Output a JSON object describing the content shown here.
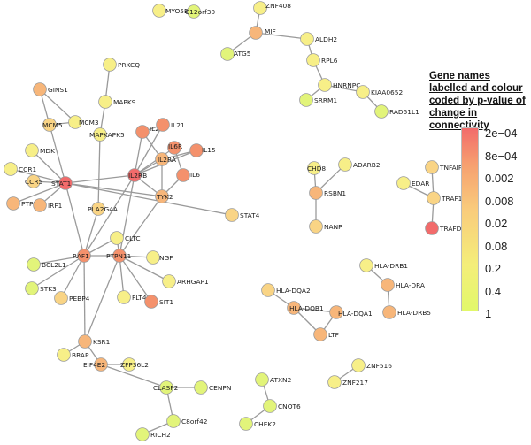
{
  "legend": {
    "title": "Gene names labelled and colour coded by p-value of change in connectivity",
    "ticks": [
      "2e−04",
      "8e−04",
      "0.002",
      "0.008",
      "0.02",
      "0.08",
      "0.2",
      "0.4",
      "1"
    ]
  },
  "colors": {
    "red": "#f26b6b",
    "orange_red": "#f4916c",
    "orange": "#f7b67a",
    "yellow_orange": "#f9d485",
    "yellow": "#f7ef88",
    "yellow_green": "#e2f47a"
  },
  "nodes": [
    {
      "id": "MYO5B",
      "label": "MYO5B",
      "c": "yellow"
    },
    {
      "id": "C12orf30",
      "label": "C12orf30",
      "c": "yellow_green"
    },
    {
      "id": "ZNF408",
      "label": "ZNF408",
      "c": "yellow"
    },
    {
      "id": "MIF",
      "label": "MIF",
      "c": "orange"
    },
    {
      "id": "ALDH2",
      "label": "ALDH2",
      "c": "yellow"
    },
    {
      "id": "ATG5",
      "label": "ATG5",
      "c": "yellow_green"
    },
    {
      "id": "RPL6",
      "label": "RPL6",
      "c": "yellow"
    },
    {
      "id": "PRKCQ",
      "label": "PRKCQ",
      "c": "yellow"
    },
    {
      "id": "HNRNPC",
      "label": "HNRNPC",
      "c": "yellow"
    },
    {
      "id": "KIAA0652",
      "label": "KIAA0652",
      "c": "yellow"
    },
    {
      "id": "SRRM1",
      "label": "SRRM1",
      "c": "yellow_green"
    },
    {
      "id": "RAD51L1",
      "label": "RAD51L1",
      "c": "yellow_green"
    },
    {
      "id": "MAPK9",
      "label": "MAPK9",
      "c": "yellow"
    },
    {
      "id": "GINS1",
      "label": "GINS1",
      "c": "orange"
    },
    {
      "id": "MCM3",
      "label": "MCM3",
      "c": "yellow"
    },
    {
      "id": "MCM5",
      "label": "MCM5",
      "c": "yellow_orange"
    },
    {
      "id": "MAPKAPK5",
      "label": "MAPKAPK5",
      "c": "yellow"
    },
    {
      "id": "IL2",
      "label": "IL2",
      "c": "orange_red"
    },
    {
      "id": "IL21",
      "label": "IL21",
      "c": "orange_red"
    },
    {
      "id": "MDK",
      "label": "MDK",
      "c": "yellow"
    },
    {
      "id": "IL6R",
      "label": "IL6R",
      "c": "orange_red"
    },
    {
      "id": "IL15",
      "label": "IL15",
      "c": "orange_red"
    },
    {
      "id": "IL2RA",
      "label": "IL2RA",
      "c": "orange"
    },
    {
      "id": "CCR1",
      "label": "CCR1",
      "c": "yellow"
    },
    {
      "id": "CCR5",
      "label": "CCR5",
      "c": "yellow_orange"
    },
    {
      "id": "STAT1",
      "label": "STAT1",
      "c": "red"
    },
    {
      "id": "IL2RB",
      "label": "IL2RB",
      "c": "red"
    },
    {
      "id": "IL6",
      "label": "IL6",
      "c": "orange_red"
    },
    {
      "id": "TYK2",
      "label": "TYK2",
      "c": "orange"
    },
    {
      "id": "PTPN2",
      "label": "PTPN2",
      "c": "orange"
    },
    {
      "id": "IRF1",
      "label": "IRF1",
      "c": "orange"
    },
    {
      "id": "CHD8",
      "label": "CHD8",
      "c": "yellow"
    },
    {
      "id": "ADARB2",
      "label": "ADARB2",
      "c": "yellow"
    },
    {
      "id": "TNFAIP3",
      "label": "TNFAIP3",
      "c": "yellow_orange"
    },
    {
      "id": "RSBN1",
      "label": "RSBN1",
      "c": "orange"
    },
    {
      "id": "EDAR",
      "label": "EDAR",
      "c": "yellow"
    },
    {
      "id": "TRAF1",
      "label": "TRAF1",
      "c": "yellow_orange"
    },
    {
      "id": "PLA2G4A",
      "label": "PLA2G4A",
      "c": "yellow_orange"
    },
    {
      "id": "STAT4",
      "label": "STAT4",
      "c": "yellow_orange"
    },
    {
      "id": "CLTC",
      "label": "CLTC",
      "c": "yellow"
    },
    {
      "id": "NANP",
      "label": "NANP",
      "c": "yellow_orange"
    },
    {
      "id": "TRAFD1",
      "label": "TRAFD1",
      "c": "red"
    },
    {
      "id": "RAF1",
      "label": "RAF1",
      "c": "orange_red"
    },
    {
      "id": "PTPN11",
      "label": "PTPN11",
      "c": "orange_red"
    },
    {
      "id": "NGF",
      "label": "NGF",
      "c": "yellow"
    },
    {
      "id": "BCL2L1",
      "label": "BCL2L1",
      "c": "yellow_green"
    },
    {
      "id": "HLA-DRB1",
      "label": "HLA-DRB1",
      "c": "yellow"
    },
    {
      "id": "STK3",
      "label": "STK3",
      "c": "yellow_green"
    },
    {
      "id": "HLA-DRA",
      "label": "HLA-DRA",
      "c": "orange"
    },
    {
      "id": "ARHGAP1",
      "label": "ARHGAP1",
      "c": "yellow"
    },
    {
      "id": "PEBP4",
      "label": "PEBP4",
      "c": "yellow_orange"
    },
    {
      "id": "FLT4",
      "label": "FLT4",
      "c": "yellow"
    },
    {
      "id": "SIT1",
      "label": "SIT1",
      "c": "orange_red"
    },
    {
      "id": "HLA-DQA2",
      "label": "HLA-DQA2",
      "c": "yellow_orange"
    },
    {
      "id": "HLA-DQB1",
      "label": "HLA-DQB1",
      "c": "orange"
    },
    {
      "id": "HLA-DQA1",
      "label": "HLA-DQA1",
      "c": "orange"
    },
    {
      "id": "HLA-DRB5",
      "label": "HLA-DRB5",
      "c": "orange"
    },
    {
      "id": "KSR1",
      "label": "KSR1",
      "c": "orange"
    },
    {
      "id": "LTF",
      "label": "LTF",
      "c": "orange"
    },
    {
      "id": "BRAP",
      "label": "BRAP",
      "c": "yellow"
    },
    {
      "id": "ZNF516",
      "label": "ZNF516",
      "c": "yellow"
    },
    {
      "id": "EIF4E2",
      "label": "EIF4E2",
      "c": "orange"
    },
    {
      "id": "ZFP36L2",
      "label": "ZFP36L2",
      "c": "yellow"
    },
    {
      "id": "ZNF217",
      "label": "ZNF217",
      "c": "yellow"
    },
    {
      "id": "ATXN2",
      "label": "ATXN2",
      "c": "yellow_green"
    },
    {
      "id": "CLASP2",
      "label": "CLASP2",
      "c": "yellow_green"
    },
    {
      "id": "CENPN",
      "label": "CENPN",
      "c": "yellow_green"
    },
    {
      "id": "CNOT6",
      "label": "CNOT6",
      "c": "yellow_green"
    },
    {
      "id": "C8orf42",
      "label": "C8orf42",
      "c": "yellow_green"
    },
    {
      "id": "CHEK2",
      "label": "CHEK2",
      "c": "yellow_green"
    },
    {
      "id": "RICH2",
      "label": "RICH2",
      "c": "yellow_green"
    }
  ],
  "edges": [
    [
      "ZNF408",
      "MIF"
    ],
    [
      "MIF",
      "ALDH2"
    ],
    [
      "MIF",
      "ATG5"
    ],
    [
      "ALDH2",
      "RPL6"
    ],
    [
      "RPL6",
      "HNRNPC"
    ],
    [
      "HNRNPC",
      "SRRM1"
    ],
    [
      "HNRNPC",
      "KIAA0652"
    ],
    [
      "KIAA0652",
      "RAD51L1"
    ],
    [
      "PRKCQ",
      "MAPK9"
    ],
    [
      "MAPK9",
      "MAPKAPK5"
    ],
    [
      "MAPKAPK5",
      "PLA2G4A"
    ],
    [
      "GINS1",
      "MCM5"
    ],
    [
      "GINS1",
      "MCM3"
    ],
    [
      "MCM3",
      "MCM5"
    ],
    [
      "MCM5",
      "STAT1"
    ],
    [
      "MDK",
      "STAT1"
    ],
    [
      "CCR1",
      "STAT1"
    ],
    [
      "CCR5",
      "STAT1"
    ],
    [
      "PTPN2",
      "STAT1"
    ],
    [
      "IRF1",
      "STAT1"
    ],
    [
      "STAT1",
      "IL2RB"
    ],
    [
      "STAT1",
      "RAF1"
    ],
    [
      "STAT1",
      "TYK2"
    ],
    [
      "STAT1",
      "STAT4"
    ],
    [
      "IL2",
      "IL2RB"
    ],
    [
      "IL2",
      "IL2RA"
    ],
    [
      "IL2",
      "IL21"
    ],
    [
      "IL21",
      "IL2RB"
    ],
    [
      "IL2RB",
      "IL2RA"
    ],
    [
      "IL2RB",
      "IL6R"
    ],
    [
      "IL2RB",
      "TYK2"
    ],
    [
      "IL2RB",
      "IL15"
    ],
    [
      "IL2RB",
      "RAF1"
    ],
    [
      "IL2RB",
      "PTPN11"
    ],
    [
      "IL6R",
      "IL6"
    ],
    [
      "IL2RA",
      "IL15"
    ],
    [
      "IL6",
      "TYK2"
    ],
    [
      "TYK2",
      "PTPN11"
    ],
    [
      "TYK2",
      "IL2RA"
    ],
    [
      "PLA2G4A",
      "RAF1"
    ],
    [
      "RAF1",
      "CLTC"
    ],
    [
      "RAF1",
      "PTPN11"
    ],
    [
      "RAF1",
      "BCL2L1"
    ],
    [
      "RAF1",
      "STK3"
    ],
    [
      "RAF1",
      "PEBP4"
    ],
    [
      "RAF1",
      "KSR1"
    ],
    [
      "CLTC",
      "PTPN11"
    ],
    [
      "PTPN11",
      "NGF"
    ],
    [
      "PTPN11",
      "ARHGAP1"
    ],
    [
      "PTPN11",
      "FLT4"
    ],
    [
      "PTPN11",
      "SIT1"
    ],
    [
      "PTPN11",
      "KSR1"
    ],
    [
      "KSR1",
      "BRAP"
    ],
    [
      "KSR1",
      "EIF4E2"
    ],
    [
      "EIF4E2",
      "ZFP36L2"
    ],
    [
      "EIF4E2",
      "CLASP2"
    ],
    [
      "CLASP2",
      "CENPN"
    ],
    [
      "CLASP2",
      "C8orf42"
    ],
    [
      "C8orf42",
      "RICH2"
    ],
    [
      "CHD8",
      "RSBN1"
    ],
    [
      "ADARB2",
      "RSBN1"
    ],
    [
      "RSBN1",
      "NANP"
    ],
    [
      "TNFAIP3",
      "TRAF1"
    ],
    [
      "EDAR",
      "TRAF1"
    ],
    [
      "TRAF1",
      "TRAFD1"
    ],
    [
      "HLA-DRB1",
      "HLA-DRA"
    ],
    [
      "HLA-DRA",
      "HLA-DRB5"
    ],
    [
      "HLA-DQA2",
      "HLA-DQB1"
    ],
    [
      "HLA-DQB1",
      "HLA-DQA1"
    ],
    [
      "HLA-DQB1",
      "LTF"
    ],
    [
      "HLA-DQA1",
      "LTF"
    ],
    [
      "ZNF516",
      "ZNF217"
    ],
    [
      "ATXN2",
      "CNOT6"
    ],
    [
      "CNOT6",
      "CHEK2"
    ]
  ]
}
